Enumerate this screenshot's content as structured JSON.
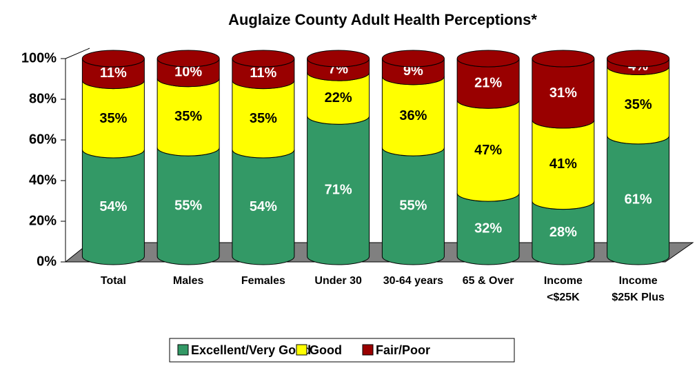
{
  "chart_data": {
    "type": "stacked_cylinder",
    "title": "Auglaize County Adult Health Perceptions*",
    "categories": [
      "Total",
      "Males",
      "Females",
      "Under 30",
      "30-64 years",
      "65 & Over",
      "Income <$25K",
      "Income $25K Plus"
    ],
    "series": [
      {
        "name": "Excellent/Very Good",
        "color": "#339966",
        "values": [
          54,
          55,
          54,
          71,
          55,
          32,
          28,
          61
        ],
        "value_labels": [
          "54%",
          "55%",
          "54%",
          "71%",
          "55%",
          "32%",
          "28%",
          "61%"
        ]
      },
      {
        "name": "Good",
        "color": "#ffff00",
        "values": [
          35,
          35,
          35,
          22,
          36,
          47,
          41,
          35
        ],
        "value_labels": [
          "35%",
          "35%",
          "35%",
          "22%",
          "36%",
          "47%",
          "41%",
          "35%"
        ]
      },
      {
        "name": "Fair/Poor",
        "color": "#990000",
        "values": [
          11,
          10,
          11,
          7,
          9,
          21,
          31,
          4
        ],
        "value_labels": [
          "11%",
          "10%",
          "11%",
          "7%",
          "9%",
          "21%",
          "31%",
          "4%"
        ]
      }
    ],
    "ylim": [
      0,
      100
    ],
    "yticks": [
      {
        "value": 0,
        "label": "0%"
      },
      {
        "value": 20,
        "label": "20%"
      },
      {
        "value": 40,
        "label": "40%"
      },
      {
        "value": 60,
        "label": "60%"
      },
      {
        "value": 80,
        "label": "80%"
      },
      {
        "value": 100,
        "label": "100%"
      }
    ],
    "legend": "bottom"
  }
}
